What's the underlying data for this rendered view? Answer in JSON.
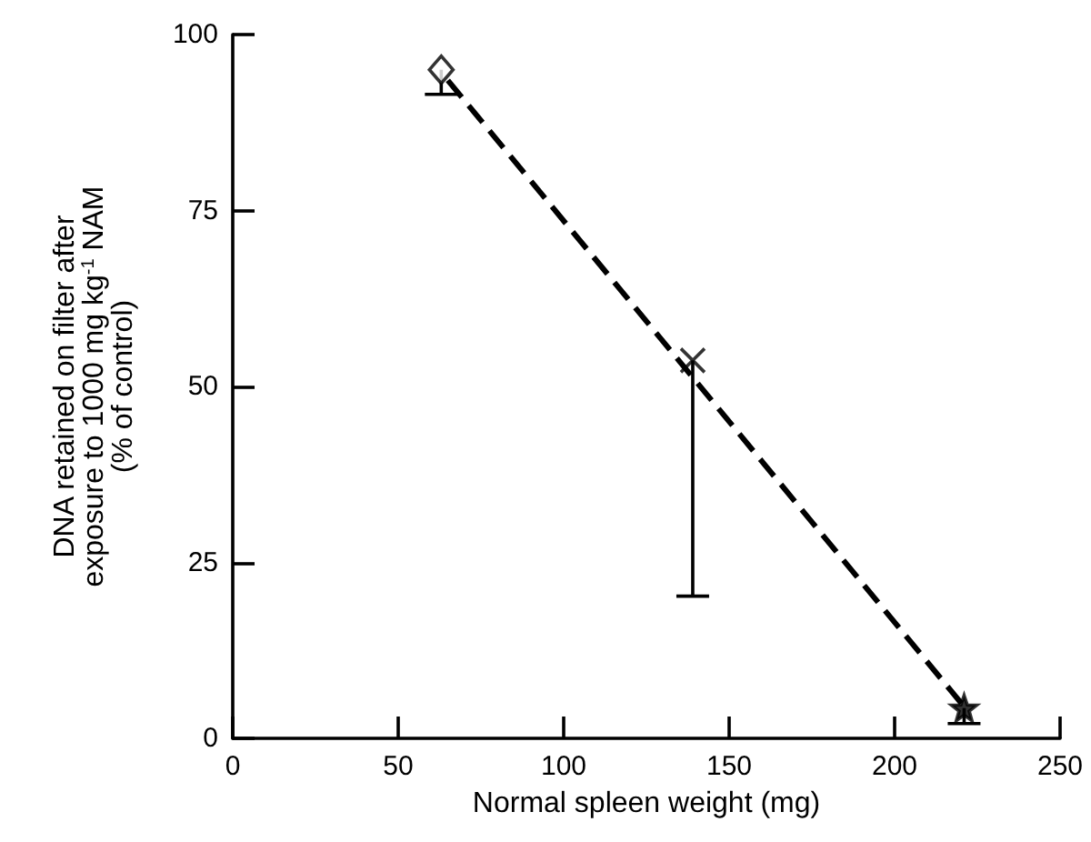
{
  "chart_data": {
    "type": "scatter",
    "xlabel": "Normal spleen weight (mg)",
    "ylabel": "DNA retained on filter after\nexposure to 1000 mg kg$^{-1}$ NAM\n(% of control)",
    "series": [
      {
        "marker": "diamond",
        "color": "#000000",
        "x": [
          63
        ],
        "values": [
          95
        ],
        "errors": [
          [
            91.5,
            95
          ]
        ]
      },
      {
        "marker": "cross",
        "color": "#000000",
        "x": [
          139
        ],
        "values": [
          53.7
        ],
        "errors": [
          [
            20.2,
            53.7
          ]
        ]
      },
      {
        "marker": "star",
        "color": "#000000",
        "x": [
          221
        ],
        "values": [
          4.3
        ],
        "errors": [
          [
            2.1,
            4.3
          ]
        ]
      },
      {
        "type": "line",
        "marker": "none",
        "line_style": "dashed",
        "color": "#000000",
        "x": [
          65,
          221
        ],
        "values": [
          93.5,
          4.5
        ]
      }
    ],
    "xlim": [
      0,
      250
    ],
    "xticks": [
      0,
      50,
      100,
      150,
      200,
      250
    ],
    "ylim": [
      0,
      100
    ],
    "yticks": [
      0,
      25,
      50,
      75,
      100
    ],
    "grid": false
  }
}
